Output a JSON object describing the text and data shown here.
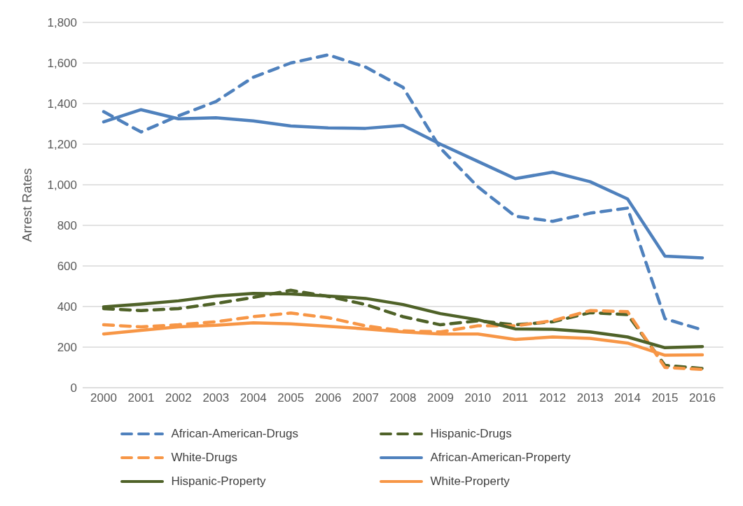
{
  "chart_data": {
    "type": "line",
    "ylabel": "Arrest Rates",
    "categories": [
      "2000",
      "2001",
      "2002",
      "2003",
      "2004",
      "2005",
      "2006",
      "2007",
      "2008",
      "2009",
      "2010",
      "2011",
      "2012",
      "2013",
      "2014",
      "2015",
      "2016"
    ],
    "ylim": [
      0,
      1800
    ],
    "yticks": [
      {
        "value": 0,
        "label": "0"
      },
      {
        "value": 200,
        "label": "200"
      },
      {
        "value": 400,
        "label": "400"
      },
      {
        "value": 600,
        "label": "600"
      },
      {
        "value": 800,
        "label": "800"
      },
      {
        "value": 1000,
        "label": "1,000"
      },
      {
        "value": 1200,
        "label": "1,200"
      },
      {
        "value": 1400,
        "label": "1,400"
      },
      {
        "value": 1600,
        "label": "1,600"
      },
      {
        "value": 1800,
        "label": "1,800"
      }
    ],
    "grid": "y",
    "legend": "bottom",
    "marker": "none",
    "series": [
      {
        "name": "African-American-Drugs",
        "color": "#4f81bd",
        "line_style": "dashed",
        "values": [
          1360,
          1260,
          1340,
          1410,
          1530,
          1600,
          1640,
          1580,
          1480,
          1180,
          990,
          845,
          820,
          860,
          885,
          340,
          285
        ]
      },
      {
        "name": "Hispanic-Drugs",
        "color": "#4f6228",
        "line_style": "dashed",
        "values": [
          390,
          380,
          390,
          415,
          445,
          480,
          450,
          410,
          350,
          310,
          330,
          310,
          325,
          370,
          360,
          110,
          95
        ]
      },
      {
        "name": "White-Drugs",
        "color": "#f79646",
        "line_style": "dashed",
        "values": [
          310,
          300,
          310,
          325,
          350,
          368,
          345,
          305,
          280,
          275,
          305,
          305,
          330,
          380,
          375,
          100,
          90
        ]
      },
      {
        "name": "African-American-Property",
        "color": "#4f81bd",
        "line_style": "solid",
        "values": [
          1310,
          1370,
          1325,
          1330,
          1315,
          1290,
          1280,
          1278,
          1292,
          1200,
          1115,
          1030,
          1062,
          1015,
          930,
          648,
          640
        ]
      },
      {
        "name": "Hispanic-Property",
        "color": "#4f6228",
        "line_style": "solid",
        "values": [
          398,
          412,
          428,
          452,
          465,
          462,
          452,
          440,
          410,
          365,
          335,
          290,
          288,
          275,
          250,
          197,
          203
        ]
      },
      {
        "name": "White-Property",
        "color": "#f79646",
        "line_style": "solid",
        "values": [
          265,
          283,
          300,
          308,
          320,
          315,
          303,
          290,
          275,
          265,
          265,
          238,
          250,
          243,
          220,
          160,
          162
        ]
      }
    ]
  }
}
